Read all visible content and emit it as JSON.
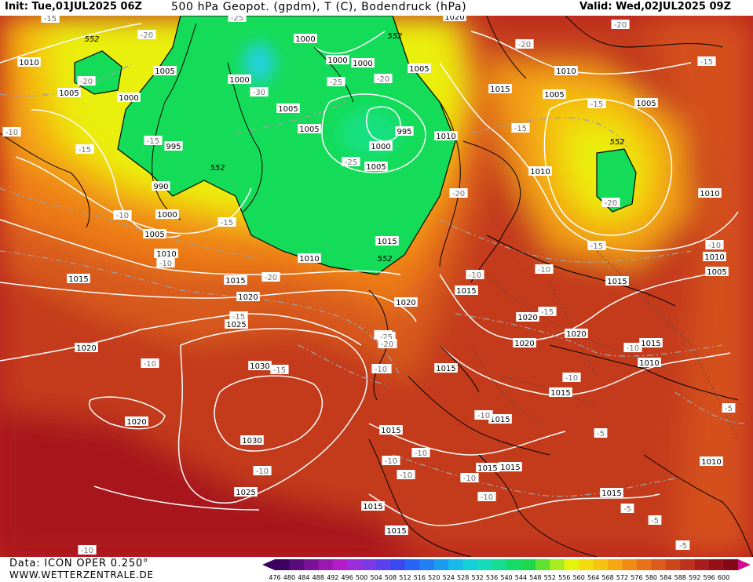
{
  "header": {
    "init": "Init: Tue,01JUL2025 06Z",
    "title": "500 hPa Geopot. (gpdm), T (C), Bodendruck (hPa)",
    "valid": "Valid: Wed,02JUL2025 09Z"
  },
  "footer": {
    "data_source": "Data: ICON OPER 0.250°",
    "website": "WWW.WETTERZENTRALE.DE"
  },
  "legend": {
    "values": [
      476,
      480,
      484,
      488,
      492,
      496,
      500,
      504,
      508,
      512,
      516,
      520,
      524,
      528,
      532,
      536,
      540,
      544,
      548,
      552,
      556,
      560,
      564,
      568,
      572,
      576,
      580,
      584,
      588,
      592,
      596,
      600
    ],
    "colors": [
      "#3d0060",
      "#5a0a7a",
      "#7a1296",
      "#9a18b0",
      "#b41cc8",
      "#9c2edc",
      "#7a38e6",
      "#5a40ee",
      "#3a48f2",
      "#2864f4",
      "#2080f4",
      "#1c9cf0",
      "#18b8e8",
      "#14d0dc",
      "#14dcb8",
      "#14dc90",
      "#14dc68",
      "#1cd84a",
      "#60e030",
      "#a8ec20",
      "#e6f40a",
      "#f4dc0a",
      "#f6c40e",
      "#f6a812",
      "#f08c16",
      "#e8721a",
      "#dc5a1c",
      "#cc461c",
      "#bc321c",
      "#a81e1c",
      "#961018",
      "#820818"
    ]
  },
  "map": {
    "isobar_labels": [
      {
        "text": "1010"
      },
      {
        "text": "1005"
      },
      {
        "text": "1000"
      },
      {
        "text": "1005"
      },
      {
        "text": "1000"
      },
      {
        "text": "995"
      },
      {
        "text": "990"
      },
      {
        "text": "1000"
      },
      {
        "text": "1005"
      },
      {
        "text": "1010"
      },
      {
        "text": "1015"
      },
      {
        "text": "1015"
      },
      {
        "text": "1020"
      },
      {
        "text": "1025"
      },
      {
        "text": "1030"
      },
      {
        "text": "1020"
      },
      {
        "text": "1020"
      },
      {
        "text": "1030"
      },
      {
        "text": "1025"
      },
      {
        "text": "1000"
      },
      {
        "text": "1000"
      },
      {
        "text": "1000"
      },
      {
        "text": "1005"
      },
      {
        "text": "1005"
      },
      {
        "text": "1005"
      },
      {
        "text": "995"
      },
      {
        "text": "1000"
      },
      {
        "text": "1005"
      },
      {
        "text": "1010"
      },
      {
        "text": "1015"
      },
      {
        "text": "1010"
      },
      {
        "text": "1020"
      },
      {
        "text": "1015"
      },
      {
        "text": "1010"
      },
      {
        "text": "1020"
      },
      {
        "text": "1015"
      },
      {
        "text": "1015"
      },
      {
        "text": "1015"
      },
      {
        "text": "1010"
      },
      {
        "text": "1005"
      },
      {
        "text": "1005"
      },
      {
        "text": "1010"
      },
      {
        "text": "1010"
      },
      {
        "text": "1015"
      },
      {
        "text": "1010"
      },
      {
        "text": "1005"
      },
      {
        "text": "1020"
      },
      {
        "text": "1020"
      },
      {
        "text": "1020"
      },
      {
        "text": "1015"
      },
      {
        "text": "1010"
      },
      {
        "text": "1015"
      },
      {
        "text": "1015"
      },
      {
        "text": "1015"
      },
      {
        "text": "1015"
      },
      {
        "text": "1015"
      },
      {
        "text": "1015"
      },
      {
        "text": "1015"
      },
      {
        "text": "1010"
      },
      {
        "text": "1020"
      }
    ],
    "temp_labels": [
      {
        "text": "-15"
      },
      {
        "text": "-20"
      },
      {
        "text": "-20"
      },
      {
        "text": "-15"
      },
      {
        "text": "-15"
      },
      {
        "text": "-10"
      },
      {
        "text": "-10"
      },
      {
        "text": "-10"
      },
      {
        "text": "-15"
      },
      {
        "text": "-20"
      },
      {
        "text": "-15"
      },
      {
        "text": "-10"
      },
      {
        "text": "-15"
      },
      {
        "text": "-25"
      },
      {
        "text": "-30"
      },
      {
        "text": "-25"
      },
      {
        "text": "-20"
      },
      {
        "text": "-25"
      },
      {
        "text": "-20"
      },
      {
        "text": "-15"
      },
      {
        "text": "-25"
      },
      {
        "text": "-20"
      },
      {
        "text": "-15"
      },
      {
        "text": "-15"
      },
      {
        "text": "-20"
      },
      {
        "text": "-15"
      },
      {
        "text": "-10"
      },
      {
        "text": "-15"
      },
      {
        "text": "-20"
      },
      {
        "text": "-15"
      },
      {
        "text": "-10"
      },
      {
        "text": "-10"
      },
      {
        "text": "-10"
      },
      {
        "text": "-10"
      },
      {
        "text": "-10"
      },
      {
        "text": "-10"
      },
      {
        "text": "-5"
      },
      {
        "text": "-10"
      },
      {
        "text": "-10"
      },
      {
        "text": "-5"
      },
      {
        "text": "-5"
      },
      {
        "text": "-5"
      },
      {
        "text": "-5"
      },
      {
        "text": "-10"
      },
      {
        "text": "-10"
      },
      {
        "text": "-10"
      },
      {
        "text": "-10"
      },
      {
        "text": "-10"
      },
      {
        "text": "-10"
      },
      {
        "text": "-5"
      },
      {
        "text": "-25"
      },
      {
        "text": "-20"
      }
    ],
    "geopot_labels": [
      {
        "text": "552"
      },
      {
        "text": "552"
      },
      {
        "text": "552"
      },
      {
        "text": "552"
      },
      {
        "text": "552"
      }
    ]
  }
}
